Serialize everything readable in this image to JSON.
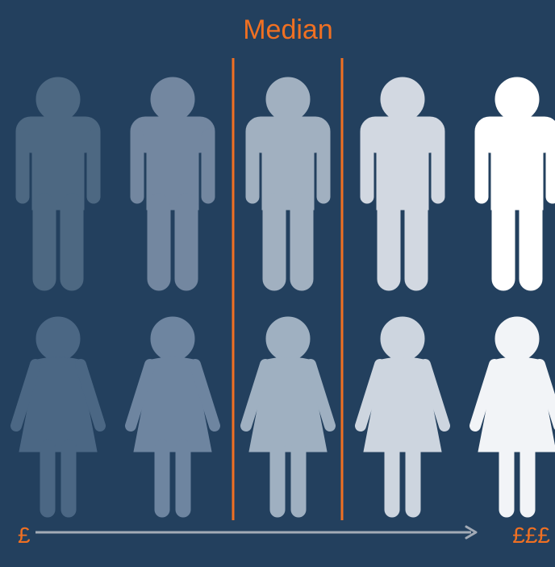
{
  "title": "Median",
  "axis": {
    "start": "£",
    "end": "£££"
  }
}
